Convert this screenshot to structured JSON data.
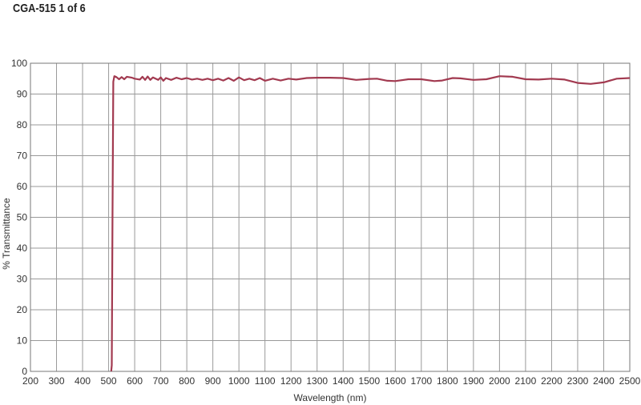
{
  "chart_data": {
    "type": "line",
    "title": "CGA-515 1 of 6",
    "xlabel": "Wavelength (nm)",
    "ylabel": "% Transmittance",
    "xlim": [
      200,
      2500
    ],
    "ylim": [
      0,
      100
    ],
    "xticks": [
      200,
      300,
      400,
      500,
      600,
      700,
      800,
      900,
      1000,
      1100,
      1200,
      1300,
      1400,
      1500,
      1600,
      1700,
      1800,
      1900,
      2000,
      2100,
      2200,
      2300,
      2400,
      2500
    ],
    "yticks": [
      0,
      10,
      20,
      30,
      40,
      50,
      60,
      70,
      80,
      90,
      100
    ],
    "grid": true,
    "line_color": "#a23a50",
    "series": [
      {
        "x": [
          510,
          512,
          515,
          518,
          522,
          530,
          540,
          550,
          560,
          570,
          590,
          600,
          620,
          630,
          640,
          650,
          660,
          670,
          690,
          700,
          710,
          720,
          740,
          760,
          780,
          800,
          820,
          840,
          860,
          880,
          900,
          920,
          940,
          960,
          980,
          1000,
          1020,
          1040,
          1060,
          1080,
          1100,
          1130,
          1160,
          1190,
          1220,
          1260,
          1300,
          1350,
          1400,
          1450,
          1500,
          1530,
          1570,
          1600,
          1650,
          1700,
          1750,
          1780,
          1820,
          1850,
          1900,
          1950,
          2000,
          2050,
          2100,
          2150,
          2200,
          2250,
          2300,
          2350,
          2400,
          2450,
          2500
        ],
        "y": [
          0,
          2,
          50,
          94,
          95.8,
          95.5,
          94.8,
          95.5,
          94.8,
          95.6,
          95.3,
          95,
          94.7,
          95.6,
          94.6,
          95.7,
          94.6,
          95.4,
          94.6,
          95.4,
          94.3,
          95.2,
          94.6,
          95.3,
          94.8,
          95.2,
          94.7,
          95.0,
          94.6,
          95.0,
          94.5,
          95.0,
          94.4,
          95.2,
          94.3,
          95.4,
          94.5,
          95.0,
          94.5,
          95.2,
          94.3,
          95.0,
          94.4,
          95.0,
          94.7,
          95.2,
          95.3,
          95.3,
          95.2,
          94.6,
          94.9,
          95.0,
          94.3,
          94.2,
          94.8,
          94.8,
          94.2,
          94.4,
          95.2,
          95.1,
          94.6,
          94.8,
          95.8,
          95.6,
          94.8,
          94.7,
          95.0,
          94.7,
          93.6,
          93.3,
          93.8,
          95.0,
          95.2
        ]
      }
    ]
  }
}
